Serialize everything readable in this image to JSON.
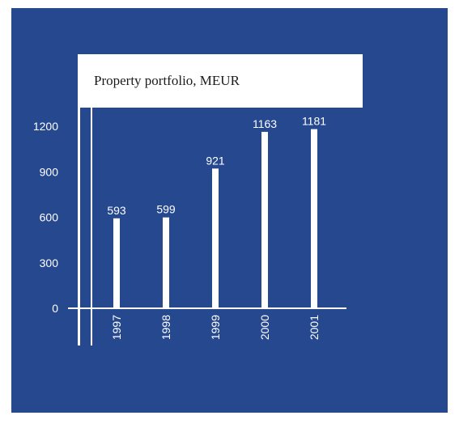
{
  "chart_data": {
    "type": "bar",
    "title": "Property portfolio, MEUR",
    "categories": [
      "1997",
      "1998",
      "1999",
      "2000",
      "2001"
    ],
    "values": [
      593,
      599,
      921,
      1163,
      1181
    ],
    "color": "#ffffff",
    "ylim": [
      0,
      1200
    ],
    "yticks": [
      0,
      300,
      600,
      900,
      1200
    ]
  }
}
